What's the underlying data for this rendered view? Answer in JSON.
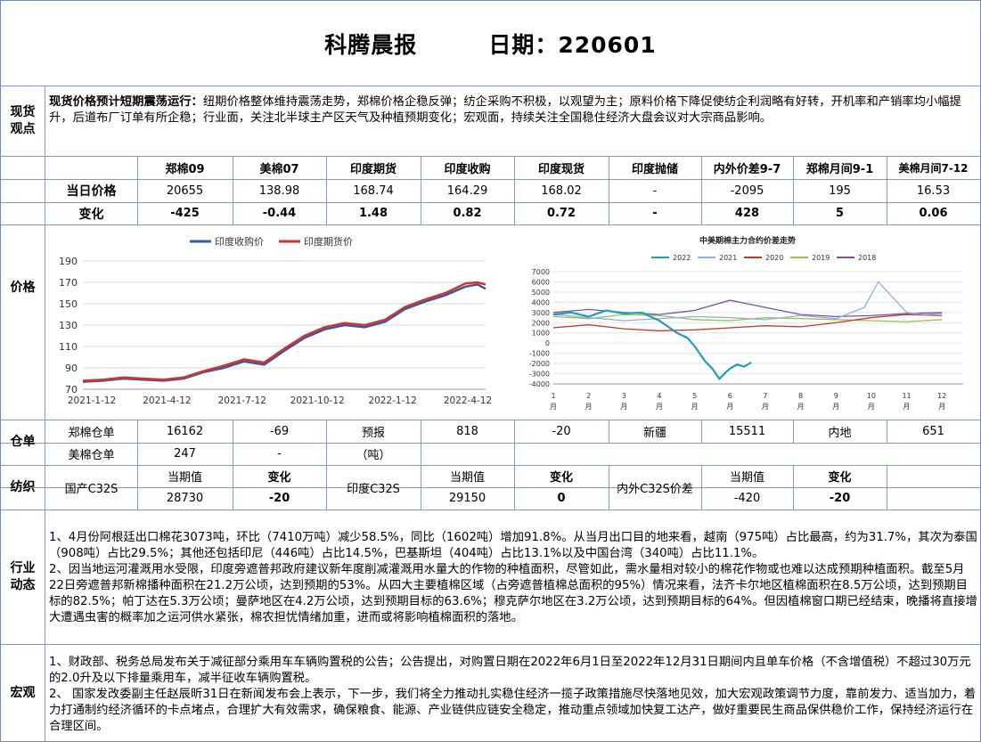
{
  "header": {
    "name": "科腾晨报",
    "date_label": "日期：220601"
  },
  "sections": {
    "spot": "现货\n观点",
    "price": "价格",
    "warehouse": "仓单",
    "textile": "纺织",
    "industry": "行业\n动态",
    "macro": "宏观"
  },
  "spot_view": {
    "headline": "现货价格预计短期震荡运行：",
    "body": "纽期价格整体维持震荡走势，郑棉价格企稳反弹；纺企采购不积极，以观望为主；原料价格下降促使纺企利润略有好转，开机率和产销率均小幅提升，后道布厂订单有所企稳；行业面，关注北半球主产区天气及种植预期变化；宏观面，持续关注全国稳住经济大盘会议对大宗商品影响。"
  },
  "price_table": {
    "headers": [
      "郑棉09",
      "美棉07",
      "印度期货",
      "印度收购",
      "印度现货",
      "印度抛储",
      "内外价差9-7",
      "郑棉月间9-1",
      "美棉月间7-12"
    ],
    "row1_label": "当日价格",
    "row1": [
      "20655",
      "138.98",
      "168.74",
      "164.29",
      "168.02",
      "-",
      "-2095",
      "195",
      "16.53"
    ],
    "row2_label": "变化",
    "row2": [
      "-425",
      "-0.44",
      "1.48",
      "0.82",
      "0.72",
      "-",
      "428",
      "5",
      "0.06"
    ]
  },
  "warehouse": {
    "zz_label": "郑棉仓单",
    "zz_value": "16162",
    "zz_change": "-69",
    "forecast_label": "预报",
    "forecast_value": "818",
    "forecast_change": "-20",
    "xj_label": "新疆",
    "xj_value": "15511",
    "nd_label": "内地",
    "nd_value": "651",
    "us_label": "美棉仓单",
    "us_value": "247",
    "us_change": "-",
    "unit": "（吨）"
  },
  "textile": {
    "cur_label": "当期值",
    "chg_label": "变化",
    "c32s_label": "国产C32S",
    "c32s_value": "28730",
    "c32s_change": "-20",
    "in_label": "印度C32S",
    "in_value": "29150",
    "in_change": "0",
    "spread_label": "内外C32S价差",
    "spread_value": "-420",
    "spread_change": "-20"
  },
  "industry": {
    "p1": "1、4月份阿根廷出口棉花3073吨，环比（7410万吨）减少58.5%，同比（1602吨）增加91.8%。从当月出口目的地来看，越南（975吨）占比最高，约为31.7%，其次为泰国（908吨）占比29.5%；其他还包括印尼（446吨）占比14.5%，巴基斯坦（404吨）占比13.1%以及中国台湾（340吨）占比11.1%。",
    "p2": "2、因当地运河灌溉用水受限，印度旁遮普邦政府建议新年度削减灌溉用水量大的作物的种植面积，尽管如此，需水量相对较小的棉花作物或也难以达成预期种植面积。截至5月22日旁遮普邦新棉播种面积在21.2万公顷，达到预期的53%。从四大主要植棉区域（占旁遮普植棉总面积的95%）情况来看，法齐卡尔地区植棉面积在8.5万公顷，达到预期目标的82.5%；帕丁达在5.3万公顷；曼萨地区在4.2万公顷，达到预期目标的63.6%；穆克萨尔地区在3.2万公顷，达到预期目标的64%。但因植棉窗口期已经结束，晚播将直接增大遭遇虫害的概率加之运河供水紧张，棉农担忧情绪加重，进而或将影响植棉面积的落地。"
  },
  "macro": {
    "p1": "1、财政部、税务总局发布关于减征部分乘用车车辆购置税的公告；公告提出，对购置日期在2022年6月1日至2022年12月31日期间内且单车价格（不含增值税）不超过30万元的2.0升及以下排量乘用车，减半征收车辆购置税。",
    "p2": "2、 国家发改委副主任赵辰昕31日在新闻发布会上表示，下一步，我们将全力推动扎实稳住经济一揽子政策措施尽快落地见效，加大宏观政策调节力度，靠前发力、适当加力，着力打通制约经济循环的卡点堵点，合理扩大有效需求，确保粮食、能源、产业链供应链安全稳定，推动重点领域加快复工达产，做好重要民生商品保供稳价工作，保持经济运行在合理区间。"
  },
  "chart_data": [
    {
      "type": "line",
      "title": "",
      "legend": "top",
      "x_ticks": [
        "2021-1-12",
        "2021-4-12",
        "2021-7-12",
        "2021-10-12",
        "2022-1-12",
        "2022-4-12"
      ],
      "ylim": [
        70,
        190
      ],
      "y_ticks": [
        70,
        90,
        110,
        130,
        150,
        170,
        190
      ],
      "grid": true,
      "series": [
        {
          "name": "印度收购价",
          "color": "#2f5da8",
          "x": [
            0,
            0.05,
            0.1,
            0.15,
            0.2,
            0.25,
            0.3,
            0.35,
            0.4,
            0.45,
            0.5,
            0.55,
            0.6,
            0.65,
            0.7,
            0.75,
            0.8,
            0.85,
            0.9,
            0.95,
            0.98,
            1.0
          ],
          "y": [
            77,
            78,
            80,
            79,
            78,
            80,
            86,
            90,
            96,
            93,
            106,
            118,
            126,
            130,
            128,
            133,
            145,
            152,
            158,
            166,
            168,
            164
          ]
        },
        {
          "name": "印度期货价",
          "color": "#d8322f",
          "x": [
            0,
            0.05,
            0.1,
            0.15,
            0.2,
            0.25,
            0.3,
            0.35,
            0.4,
            0.45,
            0.5,
            0.55,
            0.6,
            0.65,
            0.7,
            0.75,
            0.8,
            0.85,
            0.9,
            0.95,
            0.98,
            1.0
          ],
          "y": [
            78,
            79,
            81,
            80,
            79,
            81,
            87,
            92,
            98,
            95,
            108,
            120,
            128,
            132,
            130,
            135,
            147,
            154,
            160,
            169,
            170,
            168
          ]
        }
      ]
    },
    {
      "type": "line",
      "title": "中美期棉主力合约价差走势",
      "legend": "top",
      "x_ticks": [
        "1\n月",
        "2\n月",
        "3\n月",
        "4\n月",
        "5\n月",
        "6\n月",
        "7\n月",
        "8\n月",
        "9\n月",
        "10\n月",
        "11\n月",
        "12\n月"
      ],
      "ylim": [
        -4000,
        7000
      ],
      "y_ticks": [
        -4000,
        -3000,
        -2000,
        -1000,
        0,
        1000,
        2000,
        3000,
        4000,
        5000,
        6000,
        7000
      ],
      "series": [
        {
          "name": "2022",
          "color": "#1f9fb4",
          "x": [
            0,
            0.5,
            1,
            1.5,
            2,
            2.5,
            3,
            3.5,
            3.8,
            4,
            4.3,
            4.5,
            4.7,
            4.9,
            5,
            5.2,
            5.4,
            5.6
          ],
          "y": [
            2800,
            3000,
            2600,
            3200,
            2900,
            3000,
            2200,
            1000,
            500,
            -300,
            -1800,
            -2500,
            -3500,
            -2800,
            -2500,
            -2100,
            -2300,
            -1900
          ]
        },
        {
          "name": "2021",
          "color": "#8fb0e0",
          "x": [
            0,
            1,
            2,
            3,
            4,
            5,
            6,
            7,
            8,
            8.8,
            9.2,
            9.6,
            10,
            10.5,
            11
          ],
          "y": [
            2800,
            2500,
            2200,
            2400,
            2600,
            2500,
            2300,
            2700,
            2400,
            3500,
            6000,
            4500,
            3000,
            2800,
            2900
          ]
        },
        {
          "name": "2020",
          "color": "#c0392b",
          "x": [
            0,
            1,
            2,
            3,
            4,
            5,
            6,
            7,
            8,
            9,
            10,
            11
          ],
          "y": [
            1500,
            1800,
            1400,
            1200,
            1300,
            1500,
            1700,
            1600,
            2000,
            2500,
            2800,
            2700
          ]
        },
        {
          "name": "2019",
          "color": "#9bc24a",
          "x": [
            0,
            1,
            2,
            3,
            4,
            5,
            6,
            7,
            8,
            9,
            10,
            11
          ],
          "y": [
            2600,
            2400,
            2800,
            2700,
            2300,
            2200,
            2500,
            2400,
            2300,
            2200,
            2100,
            2300
          ]
        },
        {
          "name": "2018",
          "color": "#7b4fa8",
          "x": [
            0,
            1,
            2,
            3,
            4,
            5,
            6,
            7,
            8,
            9,
            10,
            11
          ],
          "y": [
            3000,
            3300,
            3000,
            2800,
            3200,
            4200,
            3500,
            2800,
            2600,
            2700,
            2900,
            3000
          ]
        }
      ]
    }
  ]
}
